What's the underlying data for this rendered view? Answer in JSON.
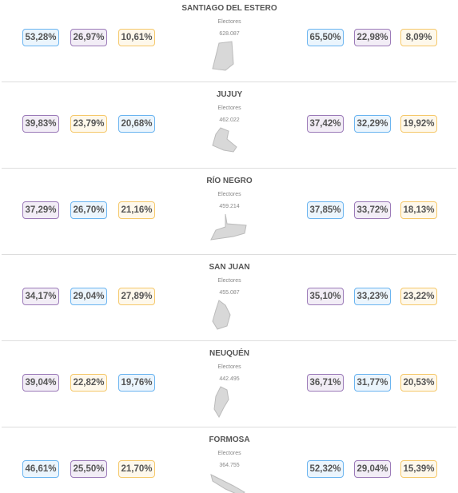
{
  "provinces": [
    {
      "name": "SANTIAGO DEL ESTERO",
      "electores_label": "Electores",
      "electores": "628.087",
      "left": [
        {
          "text": "53,28%",
          "color": "#6ab4f0"
        },
        {
          "text": "26,97%",
          "color": "#9b7ab8"
        },
        {
          "text": "10,61%",
          "color": "#f5c86a"
        }
      ],
      "right": [
        {
          "text": "65,50%",
          "color": "#6ab4f0"
        },
        {
          "text": "22,98%",
          "color": "#9b7ab8"
        },
        {
          "text": "8,09%",
          "color": "#f5c86a"
        }
      ]
    },
    {
      "name": "JUJUY",
      "electores_label": "Electores",
      "electores": "462.022",
      "left": [
        {
          "text": "39,83%",
          "color": "#9b7ab8"
        },
        {
          "text": "23,79%",
          "color": "#f5c86a"
        },
        {
          "text": "20,68%",
          "color": "#6ab4f0"
        }
      ],
      "right": [
        {
          "text": "37,42%",
          "color": "#9b7ab8"
        },
        {
          "text": "32,29%",
          "color": "#6ab4f0"
        },
        {
          "text": "19,92%",
          "color": "#f5c86a"
        }
      ]
    },
    {
      "name": "RÍO NEGRO",
      "electores_label": "Electores",
      "electores": "459.214",
      "left": [
        {
          "text": "37,29%",
          "color": "#9b7ab8"
        },
        {
          "text": "26,70%",
          "color": "#6ab4f0"
        },
        {
          "text": "21,16%",
          "color": "#f5c86a"
        }
      ],
      "right": [
        {
          "text": "37,85%",
          "color": "#6ab4f0"
        },
        {
          "text": "33,72%",
          "color": "#9b7ab8"
        },
        {
          "text": "18,13%",
          "color": "#f5c86a"
        }
      ]
    },
    {
      "name": "SAN JUAN",
      "electores_label": "Electores",
      "electores": "455.087",
      "left": [
        {
          "text": "34,17%",
          "color": "#9b7ab8"
        },
        {
          "text": "29,04%",
          "color": "#6ab4f0"
        },
        {
          "text": "27,89%",
          "color": "#f5c86a"
        }
      ],
      "right": [
        {
          "text": "35,10%",
          "color": "#9b7ab8"
        },
        {
          "text": "33,23%",
          "color": "#6ab4f0"
        },
        {
          "text": "23,22%",
          "color": "#f5c86a"
        }
      ]
    },
    {
      "name": "NEUQUÉN",
      "electores_label": "Electores",
      "electores": "442.495",
      "left": [
        {
          "text": "39,04%",
          "color": "#9b7ab8"
        },
        {
          "text": "22,82%",
          "color": "#f5c86a"
        },
        {
          "text": "19,76%",
          "color": "#6ab4f0"
        }
      ],
      "right": [
        {
          "text": "36,71%",
          "color": "#9b7ab8"
        },
        {
          "text": "31,77%",
          "color": "#6ab4f0"
        },
        {
          "text": "20,53%",
          "color": "#f5c86a"
        }
      ]
    },
    {
      "name": "FORMOSA",
      "electores_label": "Electores",
      "electores": "364.755",
      "left": [
        {
          "text": "46,61%",
          "color": "#6ab4f0"
        },
        {
          "text": "25,50%",
          "color": "#9b7ab8"
        },
        {
          "text": "21,70%",
          "color": "#f5c86a"
        }
      ],
      "right": [
        {
          "text": "52,32%",
          "color": "#6ab4f0"
        },
        {
          "text": "29,04%",
          "color": "#9b7ab8"
        },
        {
          "text": "15,39%",
          "color": "#f5c86a"
        }
      ]
    }
  ]
}
